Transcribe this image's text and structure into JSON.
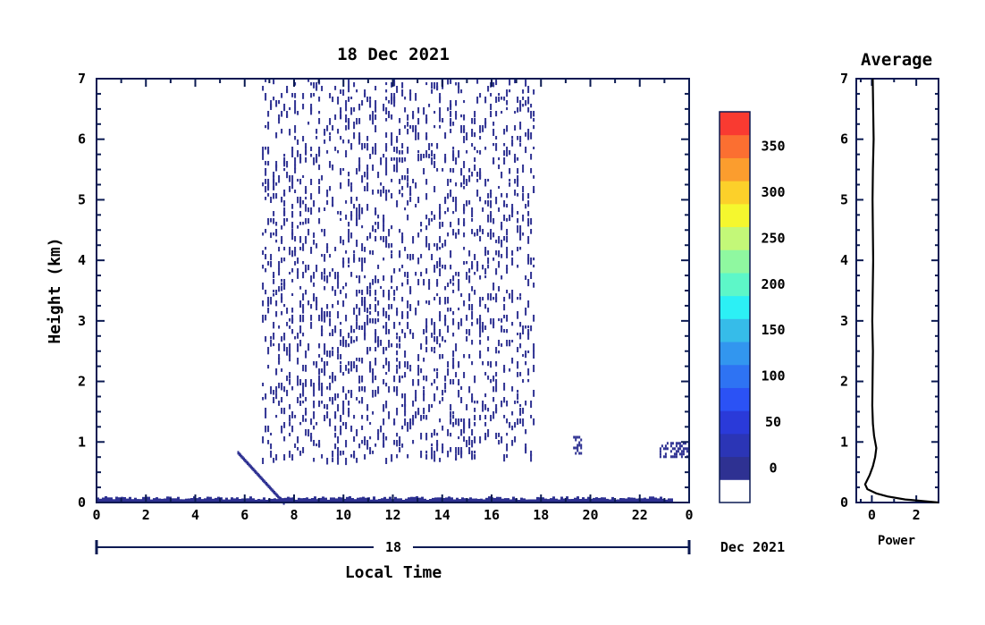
{
  "chart_data": [
    {
      "type": "heatmap",
      "title": "18 Dec 2021",
      "xlabel": "Local Time",
      "ylabel": "Height (km)",
      "xlim": [
        0,
        24
      ],
      "ylim": [
        0,
        7
      ],
      "x_ticks": [
        "0",
        "2",
        "4",
        "6",
        "8",
        "10",
        "12",
        "14",
        "16",
        "18",
        "20",
        "22",
        "0"
      ],
      "y_ticks": [
        "0",
        "1",
        "2",
        "3",
        "4",
        "5",
        "6",
        "7"
      ],
      "date_bar": {
        "day": "18",
        "month_year": "Dec 2021"
      },
      "colorbar": {
        "min": 0,
        "max": 375,
        "step": 25,
        "tick_labels": [
          "0",
          "50",
          "100",
          "150",
          "200",
          "250",
          "300",
          "350"
        ],
        "colors": [
          "#ffffff",
          "#2e3192",
          "#2b35b6",
          "#2a3ad9",
          "#2b52f5",
          "#2e73f3",
          "#3296ef",
          "#36bce9",
          "#2cf0f5",
          "#5df7c8",
          "#8ff8a0",
          "#c3f878",
          "#f5f72e",
          "#fcd02a",
          "#fb9d2e",
          "#fb6f31",
          "#f93a31"
        ]
      },
      "regions": [
        {
          "label": "surface layer",
          "x": [
            0,
            23.3
          ],
          "y": [
            0,
            0.08
          ],
          "value": 5
        },
        {
          "label": "scattered echoes",
          "x": [
            6.7,
            17.7
          ],
          "y": [
            0.7,
            7
          ],
          "value": 5
        },
        {
          "label": "streak",
          "x": [
            5.7,
            7.6
          ],
          "y": [
            0.0,
            0.85
          ],
          "value": 5
        },
        {
          "label": "patch",
          "x": [
            19.3,
            19.6
          ],
          "y": [
            0.8,
            1.1
          ],
          "value": 5
        },
        {
          "label": "patch",
          "x": [
            22.8,
            24
          ],
          "y": [
            0.75,
            1.0
          ],
          "value": 5
        }
      ]
    },
    {
      "type": "line",
      "title": "Average",
      "xlabel": "Power",
      "ylabel": "",
      "xlim": [
        -0.7,
        3
      ],
      "ylim": [
        0,
        7
      ],
      "x_ticks": [
        "0",
        "2"
      ],
      "y_ticks": [
        "0",
        "1",
        "2",
        "3",
        "4",
        "5",
        "6",
        "7"
      ],
      "series": [
        {
          "x": [
            3.0,
            1.5,
            0.7,
            0.2,
            -0.2,
            -0.3,
            -0.1,
            0.05,
            0.15,
            0.2,
            0.1,
            0.05,
            0.02,
            0.03,
            0.05,
            0.02,
            0.04,
            0.06,
            0.03,
            0.05,
            0.08,
            0.04
          ],
          "y": [
            0.0,
            0.05,
            0.1,
            0.15,
            0.22,
            0.3,
            0.45,
            0.6,
            0.75,
            0.9,
            1.1,
            1.3,
            1.6,
            2.0,
            2.5,
            3.0,
            3.5,
            4.0,
            5.0,
            5.5,
            6.0,
            7.0
          ]
        }
      ]
    }
  ]
}
